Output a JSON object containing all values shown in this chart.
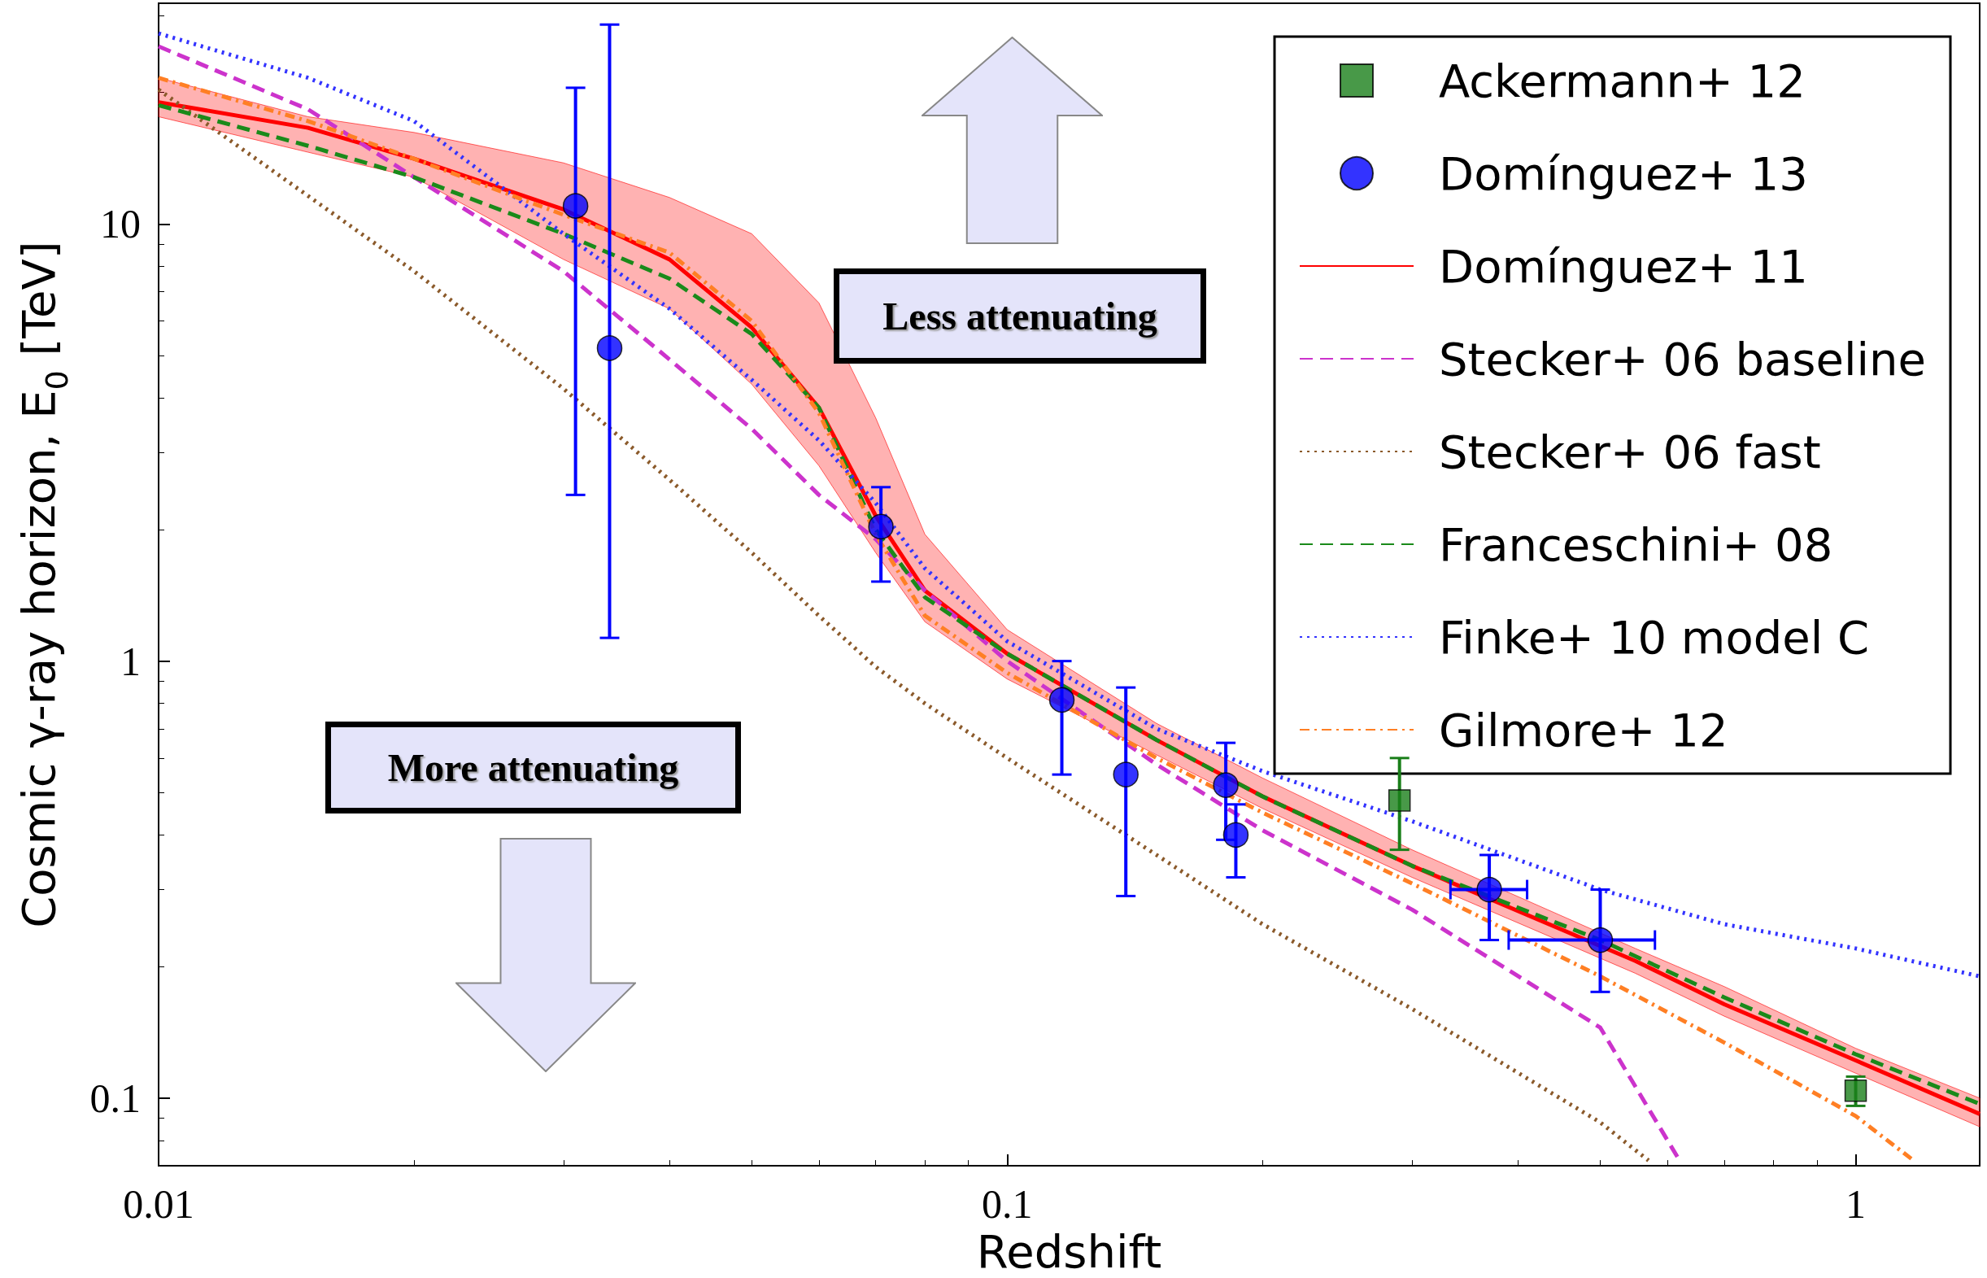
{
  "chart_data": {
    "type": "scatter",
    "xlabel": "Redshift",
    "ylabel": "Cosmic γ-ray horizon, E$_{0}$ [TeV]",
    "log": "xy",
    "xlim": [
      0.01,
      1.4
    ],
    "ylim": [
      0.07,
      32
    ],
    "xticks": [
      0.01,
      0.1,
      1
    ],
    "yticks": [
      0.1,
      1,
      10
    ],
    "grid": false,
    "legend": "top right",
    "annotations": [
      "Less attenuating",
      "More attenuating"
    ],
    "series": [
      {
        "name": "Ackermann+ 12",
        "marker": "square",
        "color": "#1a7f1a",
        "x": [
          0.29,
          1.0
        ],
        "values": [
          0.48,
          0.104
        ],
        "errors": [
          [
            0.37,
            0.6
          ],
          [
            0.096,
            0.112
          ]
        ]
      },
      {
        "name": "Domínguez+ 13",
        "marker": "circle",
        "color": "#0000ff",
        "x": [
          0.031,
          0.034,
          0.071,
          0.116,
          0.138,
          0.181,
          0.186,
          0.37,
          0.5
        ],
        "values": [
          11,
          5.2,
          2.03,
          0.815,
          0.55,
          0.52,
          0.4,
          0.3,
          0.23
        ],
        "errors": [
          [
            2.4,
            20.5
          ],
          [
            1.13,
            28.6
          ],
          [
            1.52,
            2.5
          ],
          [
            0.55,
            1.0
          ],
          [
            0.29,
            0.87
          ],
          [
            0.39,
            0.65
          ],
          [
            0.32,
            0.47
          ],
          [
            0.23,
            0.36
          ],
          [
            0.175,
            0.3
          ]
        ],
        "xerrors": [
          null,
          null,
          null,
          null,
          null,
          null,
          null,
          [
            0.333,
            0.41
          ],
          [
            0.39,
            0.58
          ]
        ]
      },
      {
        "name": "Domínguez+ 11",
        "type": "line",
        "line_style": "solid",
        "color": "#ff0000",
        "x": [
          0.01,
          0.015,
          0.02,
          0.03,
          0.04,
          0.05,
          0.06,
          0.07,
          0.08,
          0.1,
          0.15,
          0.2,
          0.3,
          0.55,
          0.7,
          1,
          1.4
        ],
        "values": [
          19,
          16.6,
          14.1,
          10.8,
          8.3,
          5.8,
          3.8,
          2.15,
          1.45,
          1.04,
          0.66,
          0.49,
          0.34,
          0.206,
          0.164,
          0.122,
          0.092
        ],
        "lower": [
          17.6,
          14.6,
          12.8,
          8.3,
          6.4,
          4.3,
          2.8,
          1.77,
          1.23,
          0.91,
          0.61,
          0.46,
          0.32,
          0.193,
          0.154,
          0.114,
          0.086
        ],
        "upper": [
          21.6,
          17.6,
          16.2,
          13.8,
          11.5,
          9.5,
          6.6,
          3.6,
          1.95,
          1.18,
          0.72,
          0.54,
          0.37,
          0.22,
          0.18,
          0.13,
          0.1
        ]
      },
      {
        "name": "Stecker+ 06 baseline",
        "type": "line",
        "line_style": "dashed",
        "color": "#cc33cc",
        "x": [
          0.01,
          0.015,
          0.02,
          0.03,
          0.04,
          0.05,
          0.06,
          0.07,
          0.08,
          0.1,
          0.15,
          0.2,
          0.3,
          0.5,
          0.62
        ],
        "values": [
          25.5,
          18.3,
          12.8,
          7.8,
          4.9,
          3.4,
          2.4,
          1.9,
          1.45,
          1.0,
          0.58,
          0.41,
          0.27,
          0.145,
          0.072
        ]
      },
      {
        "name": "Stecker+ 06 fast",
        "type": "line",
        "line_style": "dotted",
        "color": "#8b5a2b",
        "x": [
          0.01,
          0.015,
          0.02,
          0.03,
          0.04,
          0.05,
          0.06,
          0.07,
          0.08,
          0.1,
          0.15,
          0.2,
          0.3,
          0.5,
          0.57
        ],
        "values": [
          20.3,
          11.6,
          7.8,
          4.2,
          2.6,
          1.77,
          1.27,
          0.97,
          0.8,
          0.6,
          0.36,
          0.25,
          0.16,
          0.088,
          0.072
        ]
      },
      {
        "name": "Franceschini+ 08",
        "type": "line",
        "line_style": "dashed",
        "color": "#1a8a1a",
        "x": [
          0.01,
          0.015,
          0.02,
          0.03,
          0.04,
          0.05,
          0.06,
          0.07,
          0.08,
          0.1,
          0.15,
          0.2,
          0.3,
          0.5,
          0.7,
          1,
          1.4
        ],
        "values": [
          18.7,
          15.1,
          12.8,
          9.5,
          7.5,
          5.6,
          3.8,
          2.0,
          1.4,
          1.04,
          0.66,
          0.49,
          0.34,
          0.23,
          0.17,
          0.126,
          0.097
        ]
      },
      {
        "name": "Finke+ 10 model C",
        "type": "line",
        "line_style": "dotted",
        "color": "#3333ff",
        "x": [
          0.01,
          0.015,
          0.02,
          0.03,
          0.04,
          0.05,
          0.06,
          0.07,
          0.08,
          0.1,
          0.15,
          0.2,
          0.3,
          0.5,
          0.7,
          1,
          1.4
        ],
        "values": [
          27.3,
          21.6,
          17.2,
          9.5,
          6.4,
          4.4,
          3.2,
          2.3,
          1.63,
          1.11,
          0.7,
          0.56,
          0.43,
          0.3,
          0.25,
          0.22,
          0.19
        ]
      },
      {
        "name": "Gilmore+ 12",
        "type": "line",
        "line_style": "dashdot",
        "color": "#ff7f24",
        "x": [
          0.01,
          0.015,
          0.02,
          0.03,
          0.04,
          0.05,
          0.06,
          0.07,
          0.08,
          0.1,
          0.15,
          0.2,
          0.3,
          0.5,
          0.7,
          1,
          1.17
        ],
        "values": [
          21.6,
          17.2,
          14.1,
          10.5,
          8.6,
          6.0,
          3.7,
          1.95,
          1.27,
          0.94,
          0.6,
          0.45,
          0.31,
          0.19,
          0.134,
          0.091,
          0.072
        ]
      }
    ]
  }
}
